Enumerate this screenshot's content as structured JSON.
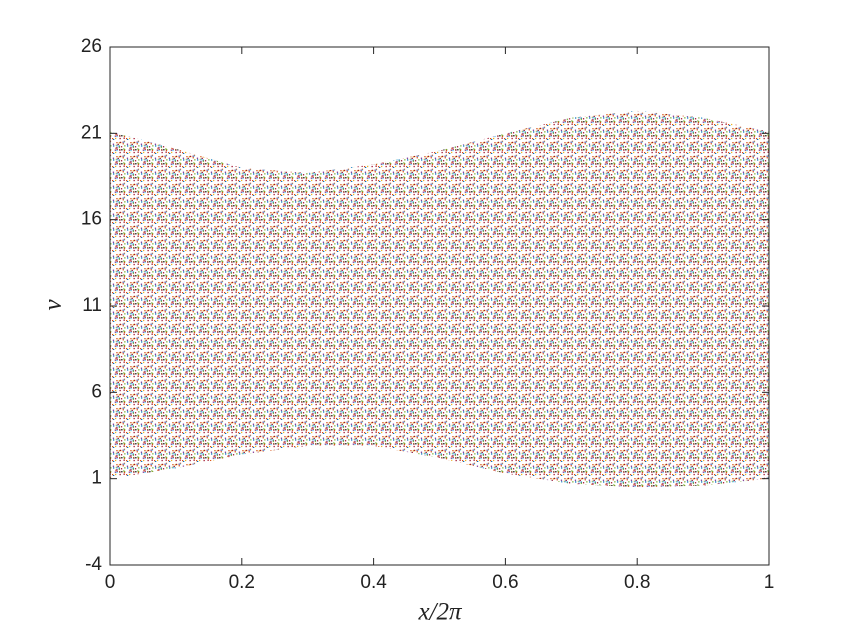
{
  "chart_data": {
    "type": "band",
    "x_label": "x/2π",
    "y_label": "v",
    "x": [
      0,
      0.1,
      0.2,
      0.3,
      0.4,
      0.5,
      0.6,
      0.7,
      0.8,
      0.9,
      1
    ],
    "upper": [
      21.1,
      20.1,
      19.0,
      18.7,
      19.2,
      20.0,
      21.0,
      21.9,
      22.3,
      21.9,
      21.1
    ],
    "lower": [
      1.0,
      1.6,
      2.4,
      2.9,
      2.9,
      2.2,
      1.3,
      0.7,
      0.5,
      0.6,
      1.0
    ],
    "colors": [
      "#000000",
      "#0072bd",
      "#d95319",
      "#edb120",
      "#7e2f8e",
      "#77ac30",
      "#4dbeee",
      "#a2142f"
    ],
    "xlim": [
      0,
      1
    ],
    "xticks": [
      0,
      0.2,
      0.4,
      0.6,
      0.8,
      1
    ],
    "ylim": [
      -4,
      26
    ],
    "yticks": [
      -4,
      1,
      6,
      11,
      16,
      21,
      26
    ],
    "grid": false
  }
}
